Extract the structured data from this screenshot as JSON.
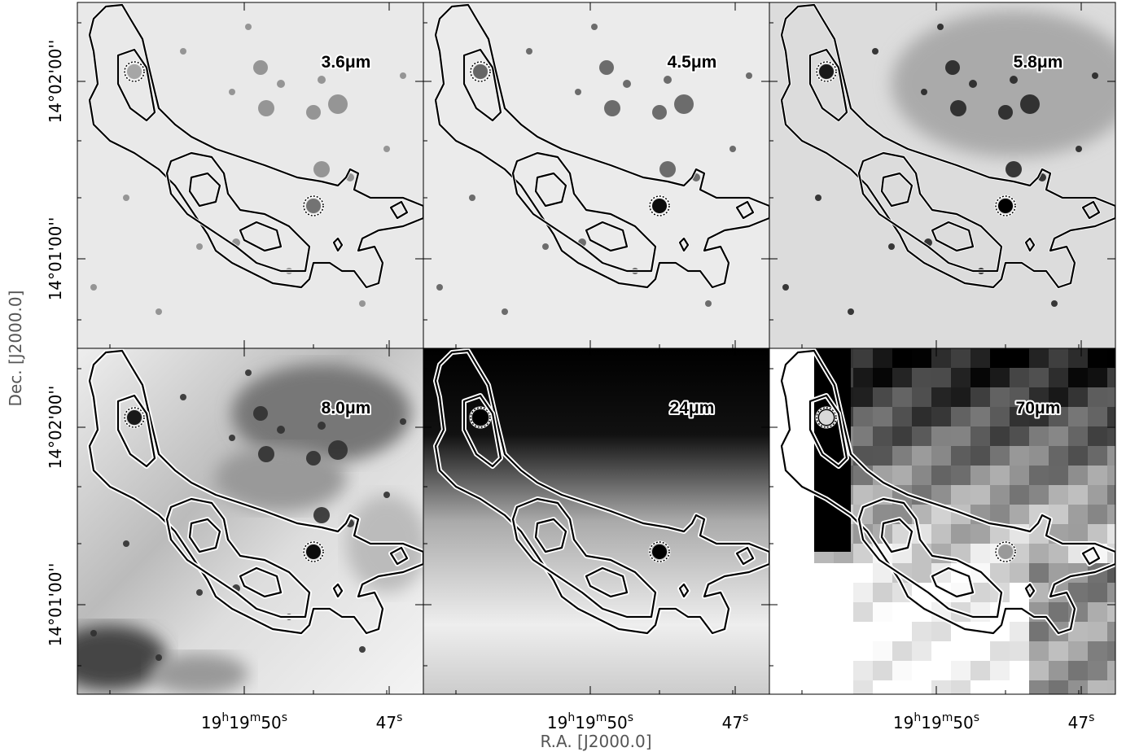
{
  "figure": {
    "panels": [
      {
        "label": "3.6μm"
      },
      {
        "label": "4.5μm"
      },
      {
        "label": "5.8μm"
      },
      {
        "label": "8.0μm"
      },
      {
        "label": "24μm"
      },
      {
        "label": "70μm"
      }
    ],
    "x_axis_label": "R.A. [J2000.0]",
    "y_axis_label": "Dec. [J2000.0]",
    "x_tick_labels": [
      [
        "19",
        "h",
        "19",
        "m",
        "50",
        "s"
      ],
      [
        "47",
        "s"
      ]
    ],
    "y_tick_labels": [
      "14°02'00''",
      "14°01'00''"
    ]
  }
}
